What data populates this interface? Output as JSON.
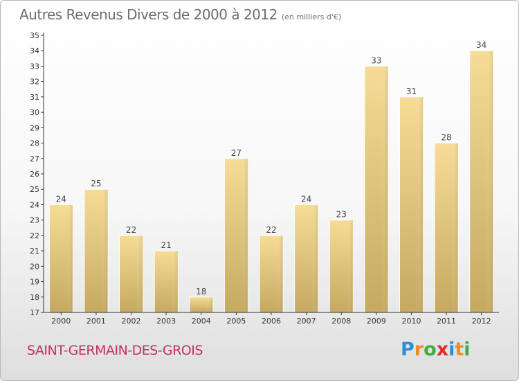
{
  "title": "Autres Revenus Divers de 2000 à 2012",
  "title_unit": "(en milliers d'€)",
  "commune": "SAINT-GERMAIN-DES-GROIS",
  "logo": {
    "letters": [
      "P",
      "r",
      "o",
      "x",
      "i",
      "t",
      "i"
    ],
    "colors": [
      "#2a8fd6",
      "#f28a1e",
      "#3fae3f",
      "#e32a2a",
      "#2a8fd6",
      "#f28a1e",
      "#3fae3f"
    ],
    "text": "Proxiti"
  },
  "colors": {
    "bar_light": "#f6dc96",
    "bar_dark": "#c5a961",
    "axis": "#333333",
    "grid": "#d8d8d8"
  },
  "chart_data": {
    "type": "bar",
    "categories": [
      "2000",
      "2001",
      "2002",
      "2003",
      "2004",
      "2005",
      "2006",
      "2007",
      "2008",
      "2009",
      "2010",
      "2011",
      "2012"
    ],
    "values": [
      24,
      25,
      22,
      21,
      18,
      27,
      22,
      24,
      23,
      33,
      31,
      28,
      34
    ],
    "title": "Autres Revenus Divers de 2000 à 2012",
    "xlabel": "",
    "ylabel": "",
    "ylim": [
      17,
      35
    ],
    "yticks": [
      17,
      18,
      19,
      20,
      21,
      22,
      23,
      24,
      25,
      26,
      27,
      28,
      29,
      30,
      31,
      32,
      33,
      34,
      35
    ],
    "grid": false,
    "legend": "none"
  }
}
